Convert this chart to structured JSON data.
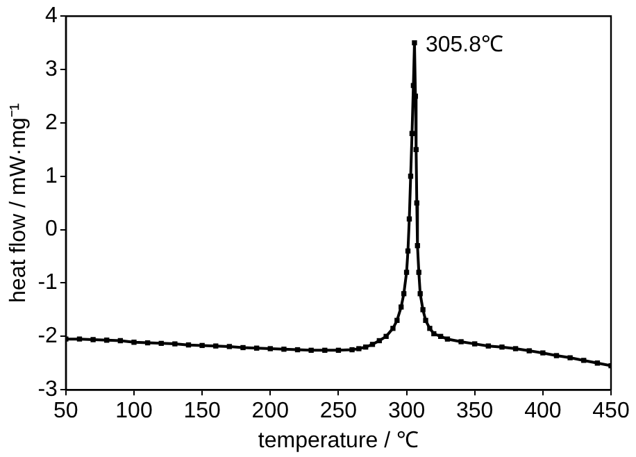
{
  "chart_data": {
    "type": "line",
    "xlabel": "temperature / ℃",
    "ylabel": "heat flow / mW·mg⁻¹",
    "xlim": [
      50,
      450
    ],
    "xticks": [
      50,
      100,
      150,
      200,
      250,
      300,
      350,
      400,
      450
    ],
    "ylim": [
      -3,
      4
    ],
    "yticks": [
      -3,
      -2,
      -1,
      0,
      1,
      2,
      3,
      4
    ],
    "grid": false,
    "legend": false,
    "marker": "square",
    "line_style": "solid",
    "annotations": [
      {
        "text": "305.8℃",
        "x": 305.8,
        "y": 3.5
      }
    ],
    "series": [
      {
        "color": "#000000",
        "x": [
          50,
          60,
          70,
          80,
          90,
          100,
          110,
          120,
          130,
          140,
          150,
          160,
          170,
          180,
          190,
          200,
          210,
          220,
          230,
          240,
          250,
          260,
          265,
          270,
          275,
          280,
          285,
          290,
          293,
          296,
          298,
          300,
          301,
          302,
          303,
          304,
          305,
          305.8,
          306.5,
          307,
          307.5,
          308,
          309,
          310,
          312,
          314,
          317,
          320,
          325,
          330,
          340,
          350,
          360,
          370,
          380,
          390,
          400,
          410,
          420,
          430,
          440,
          450
        ],
        "values": [
          -2.05,
          -2.05,
          -2.06,
          -2.07,
          -2.08,
          -2.11,
          -2.12,
          -2.13,
          -2.14,
          -2.16,
          -2.17,
          -2.18,
          -2.19,
          -2.21,
          -2.22,
          -2.23,
          -2.24,
          -2.25,
          -2.26,
          -2.26,
          -2.26,
          -2.25,
          -2.23,
          -2.2,
          -2.15,
          -2.08,
          -2.0,
          -1.85,
          -1.7,
          -1.45,
          -1.2,
          -0.8,
          -0.4,
          0.2,
          1.0,
          1.8,
          2.7,
          3.5,
          2.5,
          1.5,
          0.5,
          -0.3,
          -0.8,
          -1.2,
          -1.5,
          -1.7,
          -1.85,
          -1.95,
          -2.0,
          -2.05,
          -2.1,
          -2.14,
          -2.18,
          -2.2,
          -2.23,
          -2.27,
          -2.31,
          -2.36,
          -2.4,
          -2.45,
          -2.5,
          -2.55
        ]
      }
    ]
  }
}
